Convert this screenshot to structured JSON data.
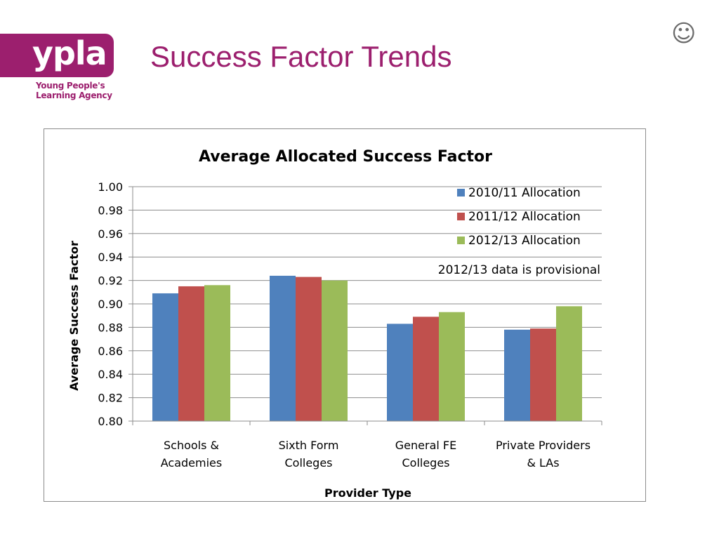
{
  "logo": {
    "wordmark": "ypla",
    "line1": "Young People's",
    "line2": "Learning Agency",
    "color": "#9c1f6e"
  },
  "slide": {
    "title": "Success Factor Trends",
    "corner_icon": "☺"
  },
  "chart_data": {
    "type": "bar",
    "title": "Average Allocated Success Factor",
    "xlabel": "Provider Type",
    "ylabel": "Average Success Factor",
    "categories": [
      [
        "Schools &",
        "Academies"
      ],
      [
        "Sixth Form",
        "Colleges"
      ],
      [
        "General FE",
        "Colleges"
      ],
      [
        "Private Providers",
        "& LAs"
      ]
    ],
    "series": [
      {
        "name": "2010/11 Allocation",
        "color": "#4f81bd",
        "values": [
          0.909,
          0.924,
          0.883,
          0.878
        ]
      },
      {
        "name": "2011/12 Allocation",
        "color": "#c0504d",
        "values": [
          0.915,
          0.923,
          0.889,
          0.879
        ]
      },
      {
        "name": "2012/13 Allocation",
        "color": "#9bbb59",
        "values": [
          0.916,
          0.92,
          0.893,
          0.898
        ]
      }
    ],
    "ylim": [
      0.8,
      1.0
    ],
    "yticks": [
      "1.00",
      "0.98",
      "0.96",
      "0.94",
      "0.92",
      "0.90",
      "0.88",
      "0.86",
      "0.84",
      "0.82",
      "0.80"
    ],
    "grid": true,
    "legend": "top-right",
    "annotation": "2012/13 data is provisional"
  }
}
